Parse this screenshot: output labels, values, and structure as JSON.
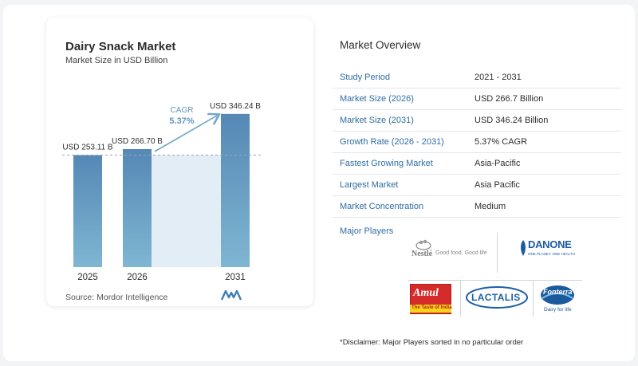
{
  "chart_data": {
    "type": "bar",
    "title": "Dairy Snack Market",
    "subtitle": "Market Size in USD Billion",
    "categories": [
      "2025",
      "2026",
      "2031"
    ],
    "values": [
      253.11,
      266.7,
      346.24
    ],
    "value_labels": [
      "USD 253.11 B",
      "USD 266.70 B",
      "USD 346.24 B"
    ],
    "cagr_label": "CAGR",
    "cagr_value": "5.37%",
    "bar_color": "#5b8fb9",
    "ylim": [
      0,
      360
    ]
  },
  "source": "Source:  Mordor Intelligence",
  "overview": {
    "title": "Market Overview",
    "rows": [
      {
        "key": "Study Period",
        "value": "2021 - 2031"
      },
      {
        "key": "Market Size (2026)",
        "value": "USD 266.7 Billion"
      },
      {
        "key": "Market Size (2031)",
        "value": "USD 346.24 Billion"
      },
      {
        "key": "Growth Rate (2026 - 2031)",
        "value": "5.37% CAGR"
      },
      {
        "key": "Fastest Growing Market",
        "value": "Asia-Pacific"
      },
      {
        "key": "Largest Market",
        "value": "Asia Pacific"
      },
      {
        "key": "Market Concentration",
        "value": "Medium"
      }
    ]
  },
  "players": {
    "title": "Major Players",
    "nestle": {
      "name": "Nestlé",
      "tagline": "Good food, Good life"
    },
    "danone": {
      "name": "DANONE",
      "tagline": "ONE PLANET. ONE HEALTH"
    },
    "amul": {
      "name": "Amul",
      "tagline": "The Taste of India"
    },
    "lactalis": {
      "name": "LACTALIS"
    },
    "fonterra": {
      "name": "Fonterra",
      "tagline": "Dairy for life"
    }
  },
  "disclaimer": "*Disclaimer: Major Players sorted in no particular order"
}
